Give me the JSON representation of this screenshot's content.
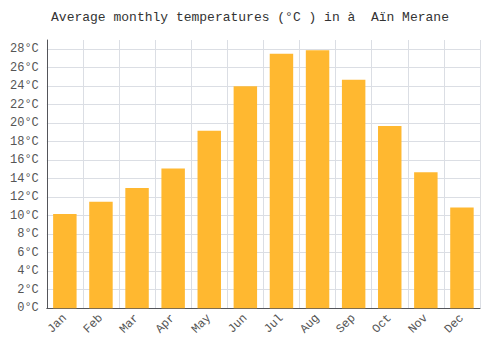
{
  "chart_data": {
    "type": "bar",
    "title": "Average monthly temperatures (°C ) in à  Aïn Merane",
    "categories": [
      "Jan",
      "Feb",
      "Mar",
      "Apr",
      "May",
      "Jun",
      "Jul",
      "Aug",
      "Sep",
      "Oct",
      "Nov",
      "Dec"
    ],
    "values": [
      10.2,
      11.5,
      13.0,
      15.1,
      19.2,
      24.0,
      27.5,
      27.9,
      24.7,
      19.7,
      14.7,
      10.9
    ],
    "color": "#FFB830",
    "ylim": [
      0,
      29
    ],
    "yticks": [
      {
        "value": 0,
        "label": "0°C"
      },
      {
        "value": 2,
        "label": "2°C"
      },
      {
        "value": 4,
        "label": "4°C"
      },
      {
        "value": 6,
        "label": "6°C"
      },
      {
        "value": 8,
        "label": "8°C"
      },
      {
        "value": 10,
        "label": "10°C"
      },
      {
        "value": 12,
        "label": "12°C"
      },
      {
        "value": 14,
        "label": "14°C"
      },
      {
        "value": 16,
        "label": "16°C"
      },
      {
        "value": 18,
        "label": "18°C"
      },
      {
        "value": 20,
        "label": "20°C"
      },
      {
        "value": 22,
        "label": "22°C"
      },
      {
        "value": 24,
        "label": "24°C"
      },
      {
        "value": 26,
        "label": "26°C"
      },
      {
        "value": 28,
        "label": "28°C"
      }
    ],
    "grid": true
  }
}
